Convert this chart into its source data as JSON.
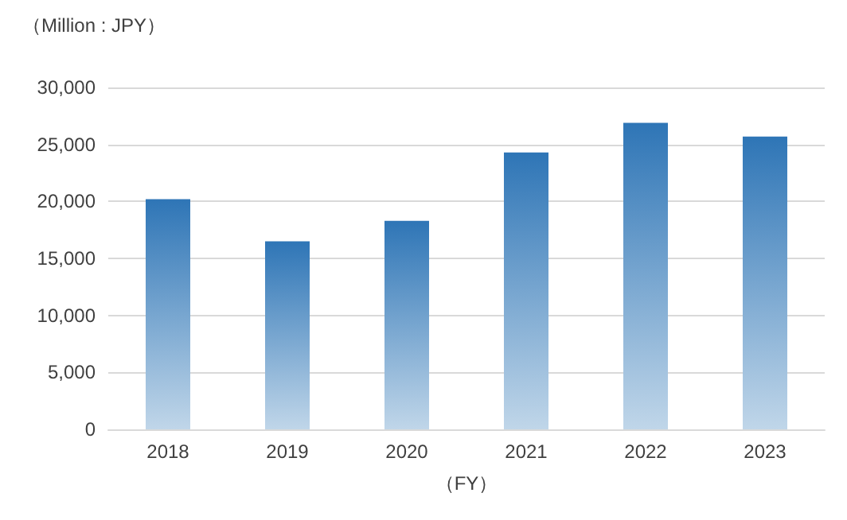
{
  "chart_data": {
    "type": "bar",
    "ylabel": "（Million : JPY）",
    "xlabel": "（FY）",
    "categories": [
      "2018",
      "2019",
      "2020",
      "2021",
      "2022",
      "2023"
    ],
    "values": [
      20200,
      16500,
      18300,
      24300,
      26900,
      25700
    ],
    "color": "#2e75b6",
    "ylim": [
      0,
      30000
    ],
    "yticks": [
      0,
      {
        "value": 5000,
        "label": "5,000"
      },
      {
        "value": 10000,
        "label": "10,000"
      },
      {
        "value": 15000,
        "label": "15,000"
      },
      {
        "value": 20000,
        "label": "20,000"
      },
      {
        "value": 25000,
        "label": "25,000"
      },
      {
        "value": 30000,
        "label": "30,000"
      }
    ],
    "grid": "y"
  }
}
